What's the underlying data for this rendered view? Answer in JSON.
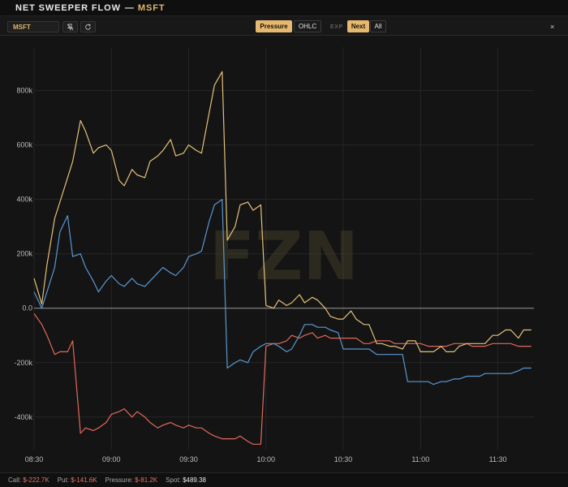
{
  "header": {
    "title": "NET SWEEPER FLOW",
    "separator": "—",
    "symbol": "MSFT"
  },
  "toolbar": {
    "symbol_value": "MSFT",
    "pin_icon": "pin-off-icon",
    "refresh_icon": "refresh-icon",
    "view_buttons": [
      {
        "label": "Pressure",
        "active": true
      },
      {
        "label": "OHLC",
        "active": false
      }
    ],
    "exp_label": "EXP",
    "exp_buttons": [
      {
        "label": "Next",
        "active": true
      },
      {
        "label": "All",
        "active": false
      }
    ],
    "close_label": "×"
  },
  "watermark": "FZN",
  "footer": {
    "call_label": "Call:",
    "call_value": "$-222.7K",
    "put_label": "Put:",
    "put_value": "$-141.6K",
    "pressure_label": "Pressure:",
    "pressure_value": "$-81.2K",
    "spot_label": "Spot:",
    "spot_value": "$489.38"
  },
  "colors": {
    "pressure": "#e4c07a",
    "call": "#5b97d1",
    "put": "#e2685a",
    "accent": "#e6b871"
  },
  "chart_data": {
    "type": "line",
    "xlabel": "",
    "ylabel": "",
    "x_ticks": [
      "08:30",
      "09:00",
      "09:30",
      "10:00",
      "10:30",
      "11:00",
      "11:30"
    ],
    "y_ticks": [
      "800k",
      "600k",
      "400k",
      "200k",
      "0.0",
      "-200k",
      "-400k"
    ],
    "x_domain": [
      "08:30",
      "11:44"
    ],
    "ylim": [
      -520000,
      960000
    ],
    "grid": true,
    "x": [
      "08:30",
      "08:33",
      "08:35",
      "08:38",
      "08:40",
      "08:43",
      "08:45",
      "08:48",
      "08:50",
      "08:53",
      "08:55",
      "08:58",
      "09:00",
      "09:03",
      "09:05",
      "09:08",
      "09:10",
      "09:13",
      "09:15",
      "09:18",
      "09:20",
      "09:23",
      "09:25",
      "09:28",
      "09:30",
      "09:33",
      "09:35",
      "09:38",
      "09:40",
      "09:43",
      "09:45",
      "09:48",
      "09:50",
      "09:53",
      "09:55",
      "09:58",
      "10:00",
      "10:03",
      "10:05",
      "10:08",
      "10:10",
      "10:13",
      "10:15",
      "10:18",
      "10:20",
      "10:23",
      "10:25",
      "10:28",
      "10:30",
      "10:33",
      "10:35",
      "10:38",
      "10:40",
      "10:43",
      "10:45",
      "10:48",
      "10:50",
      "10:53",
      "10:55",
      "10:58",
      "11:00",
      "11:03",
      "11:05",
      "11:08",
      "11:10",
      "11:13",
      "11:15",
      "11:18",
      "11:20",
      "11:23",
      "11:25",
      "11:28",
      "11:30",
      "11:33",
      "11:35",
      "11:38",
      "11:40",
      "11:43"
    ],
    "series": [
      {
        "name": "Pressure",
        "color": "#e4c07a",
        "values": [
          110000,
          15000,
          160000,
          330000,
          390000,
          480000,
          540000,
          690000,
          650000,
          570000,
          590000,
          600000,
          580000,
          470000,
          450000,
          510000,
          490000,
          480000,
          540000,
          560000,
          580000,
          620000,
          560000,
          570000,
          600000,
          580000,
          570000,
          720000,
          820000,
          870000,
          250000,
          300000,
          380000,
          390000,
          360000,
          380000,
          10000,
          0,
          30000,
          10000,
          20000,
          50000,
          20000,
          40000,
          30000,
          0,
          -30000,
          -40000,
          -40000,
          -10000,
          -40000,
          -60000,
          -60000,
          -130000,
          -130000,
          -140000,
          -140000,
          -150000,
          -120000,
          -120000,
          -160000,
          -160000,
          -160000,
          -140000,
          -160000,
          -160000,
          -140000,
          -130000,
          -130000,
          -130000,
          -130000,
          -100000,
          -100000,
          -80000,
          -80000,
          -110000,
          -80000,
          -80000
        ]
      },
      {
        "name": "Call",
        "color": "#5b97d1",
        "values": [
          60000,
          0,
          60000,
          150000,
          280000,
          340000,
          190000,
          200000,
          150000,
          100000,
          60000,
          100000,
          120000,
          90000,
          80000,
          110000,
          90000,
          80000,
          100000,
          130000,
          150000,
          130000,
          120000,
          150000,
          190000,
          200000,
          210000,
          320000,
          380000,
          400000,
          -220000,
          -200000,
          -190000,
          -200000,
          -160000,
          -140000,
          -130000,
          -130000,
          -140000,
          -160000,
          -150000,
          -100000,
          -60000,
          -60000,
          -70000,
          -70000,
          -80000,
          -90000,
          -150000,
          -150000,
          -150000,
          -150000,
          -150000,
          -170000,
          -170000,
          -170000,
          -170000,
          -170000,
          -270000,
          -270000,
          -270000,
          -270000,
          -280000,
          -270000,
          -270000,
          -260000,
          -260000,
          -250000,
          -250000,
          -250000,
          -240000,
          -240000,
          -240000,
          -240000,
          -240000,
          -230000,
          -220000,
          -220000
        ]
      },
      {
        "name": "Put",
        "color": "#e2685a",
        "values": [
          -20000,
          -60000,
          -100000,
          -170000,
          -160000,
          -160000,
          -120000,
          -460000,
          -440000,
          -450000,
          -440000,
          -420000,
          -390000,
          -380000,
          -370000,
          -400000,
          -380000,
          -400000,
          -420000,
          -440000,
          -430000,
          -420000,
          -430000,
          -440000,
          -430000,
          -440000,
          -440000,
          -460000,
          -470000,
          -480000,
          -480000,
          -480000,
          -470000,
          -490000,
          -500000,
          -500000,
          -140000,
          -130000,
          -130000,
          -120000,
          -100000,
          -110000,
          -100000,
          -90000,
          -110000,
          -100000,
          -110000,
          -110000,
          -110000,
          -110000,
          -110000,
          -130000,
          -130000,
          -120000,
          -120000,
          -120000,
          -130000,
          -130000,
          -130000,
          -130000,
          -130000,
          -140000,
          -140000,
          -140000,
          -140000,
          -130000,
          -130000,
          -130000,
          -140000,
          -140000,
          -140000,
          -130000,
          -130000,
          -130000,
          -130000,
          -140000,
          -140000,
          -140000
        ]
      }
    ]
  }
}
